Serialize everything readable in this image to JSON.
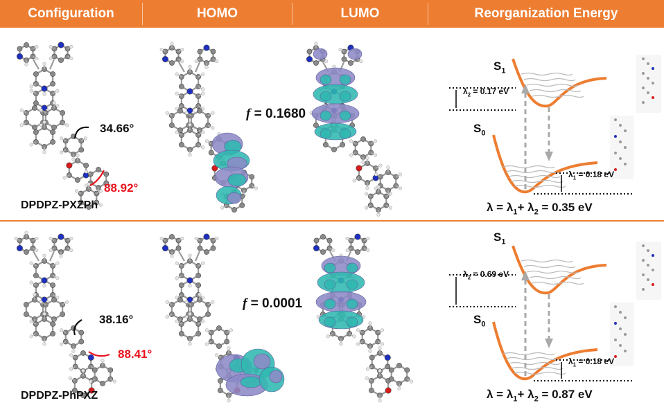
{
  "header": {
    "columns": [
      "Configuration",
      "HOMO",
      "LUMO",
      "Reorganization Energy"
    ],
    "color": "#ED7D31"
  },
  "rows": [
    {
      "name": "DPDPZ-PXZPh",
      "angle_black": "34.66°",
      "angle_red": "88.92°",
      "f_label": "f",
      "f_value": " = 0.1680",
      "s1_label": "S",
      "s1_sub": "1",
      "s0_label": "S",
      "s0_sub": "0",
      "lambda2_pre": "λ",
      "lambda2_sub": "2",
      "lambda2_val": " = 0.17 eV",
      "lambda1_pre": "λ",
      "lambda1_sub": "1",
      "lambda1_val": " = 0.18 eV",
      "eq_a": "λ = λ",
      "eq_s1": "1",
      "eq_b": "+ λ",
      "eq_s2": "2",
      "eq_c": " = 0.35 eV"
    },
    {
      "name": "DPDPZ-PhPXZ",
      "angle_black": "38.16°",
      "angle_red": "88.41°",
      "f_label": "f",
      "f_value": " = 0.0001",
      "s1_label": "S",
      "s1_sub": "1",
      "s0_label": "S",
      "s0_sub": "0",
      "lambda2_pre": "λ",
      "lambda2_sub": "2",
      "lambda2_val": " = 0.69 eV",
      "lambda1_pre": "λ",
      "lambda1_sub": "1",
      "lambda1_val": " = 0.18 eV",
      "eq_a": "λ = λ",
      "eq_s1": "1",
      "eq_b": "+ λ",
      "eq_s2": "2",
      "eq_c": " = 0.87 eV"
    }
  ],
  "colors": {
    "curve": "#ED7D31",
    "orbital_teal": "#2fb8b0",
    "orbital_purple": "#8c8ac6",
    "carbon": "#8a8a8a",
    "nitrogen": "#1f2fbf",
    "oxygen": "#d81b1b"
  }
}
